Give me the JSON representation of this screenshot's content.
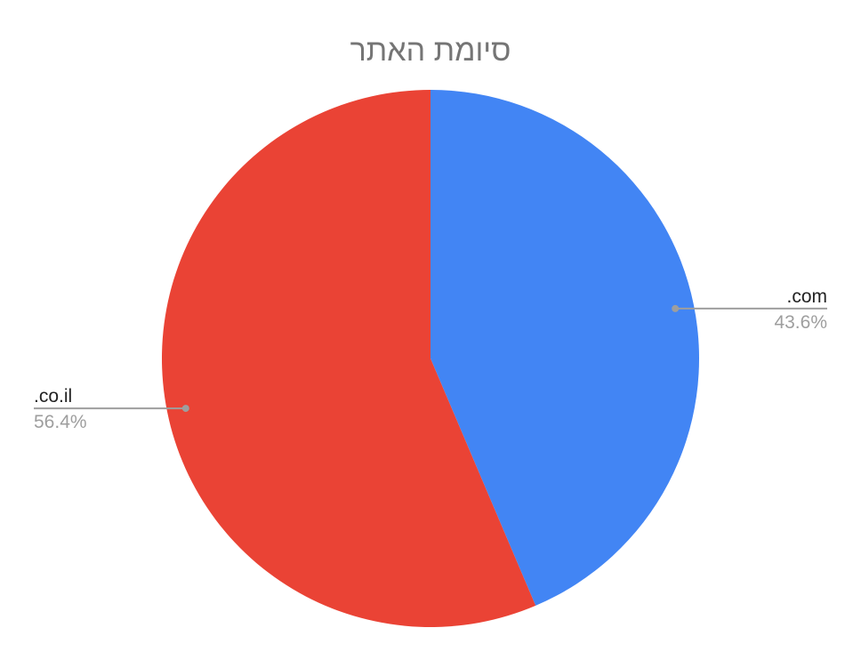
{
  "chart_data": {
    "type": "pie",
    "title": "סיומת האתר",
    "legend": "none",
    "slices": [
      {
        "label": ".com",
        "value": 43.6,
        "percent_label": "43.6%",
        "color": "#4285f4"
      },
      {
        "label": ".co.il",
        "value": 56.4,
        "percent_label": "56.4%",
        "color": "#ea4335"
      }
    ]
  },
  "colors": {
    "title": "#757575",
    "label_text": "#222222",
    "percent_text": "#9e9e9e",
    "leader_line": "#9e9e9e"
  }
}
